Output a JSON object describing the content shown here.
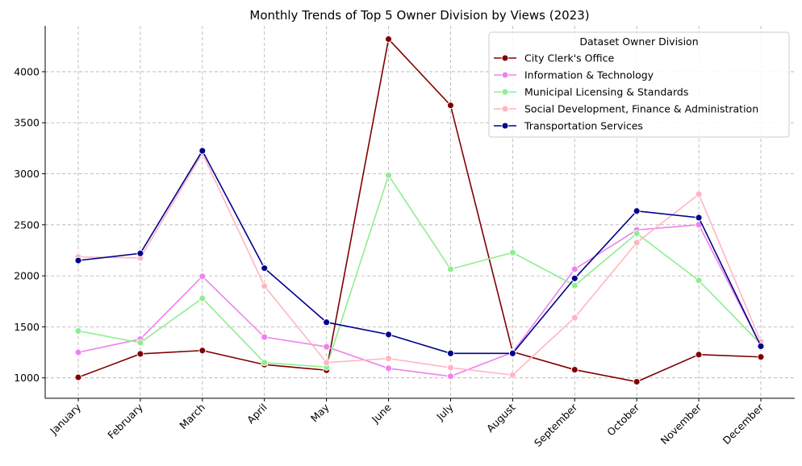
{
  "chart_data": {
    "type": "line",
    "title": "Monthly Trends of Top 5 Owner Division by Views (2023)",
    "xlabel": "",
    "ylabel": "",
    "categories": [
      "January",
      "February",
      "March",
      "April",
      "May",
      "June",
      "July",
      "August",
      "September",
      "October",
      "November",
      "December"
    ],
    "ylim": [
      800,
      4450
    ],
    "yticks": [
      1000,
      1500,
      2000,
      2500,
      3000,
      3500,
      4000
    ],
    "grid": true,
    "legend": {
      "title": "Dataset Owner Division",
      "placement": "top-right"
    },
    "series": [
      {
        "name": "City Clerk's Office",
        "color": "#800000",
        "values": [
          1005,
          1235,
          1268,
          1130,
          1075,
          4320,
          3670,
          1255,
          1080,
          962,
          1228,
          1205
        ]
      },
      {
        "name": "Information & Technology",
        "color": "#ee82ee",
        "values": [
          1250,
          1380,
          1995,
          1400,
          1305,
          1093,
          1015,
          1250,
          2065,
          2450,
          2500,
          1315
        ]
      },
      {
        "name": "Municipal Licensing & Standards",
        "color": "#90ee90",
        "values": [
          1460,
          1345,
          1780,
          1150,
          1105,
          2985,
          2065,
          2228,
          1905,
          2415,
          1955,
          1330
        ]
      },
      {
        "name": "Social Development, Finance & Administration",
        "color": "#ffb6c1",
        "values": [
          2185,
          2175,
          3200,
          1900,
          1150,
          1190,
          1100,
          1028,
          1590,
          2325,
          2800,
          1355
        ]
      },
      {
        "name": "Transportation Services",
        "color": "#00008b",
        "values": [
          2150,
          2220,
          3225,
          2075,
          1545,
          1425,
          1240,
          1240,
          1975,
          2635,
          2570,
          1310
        ]
      }
    ]
  }
}
